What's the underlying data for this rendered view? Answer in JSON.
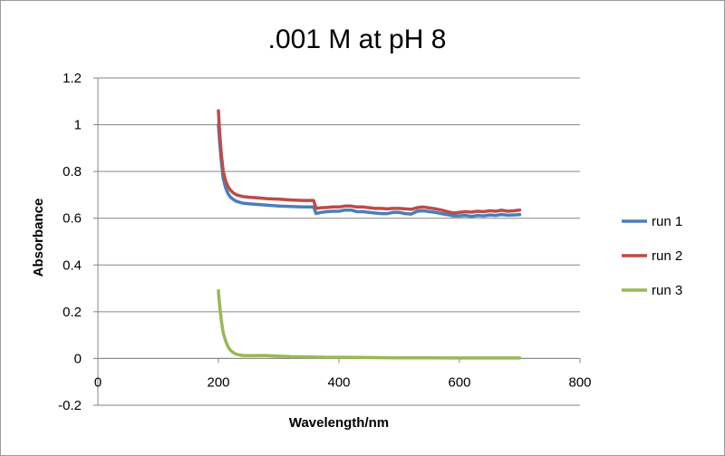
{
  "chart_data": {
    "type": "line",
    "title": ".001 M at pH 8",
    "xlabel": "Wavelength/nm",
    "ylabel": "Absorbance",
    "xlim": [
      0,
      800
    ],
    "ylim": [
      -0.2,
      1.2
    ],
    "xticks": [
      0,
      200,
      400,
      600,
      800
    ],
    "yticks": [
      -0.2,
      0,
      0.2,
      0.4,
      0.6,
      0.8,
      1,
      1.2
    ],
    "xtick_labels": [
      "0",
      "200",
      "400",
      "600",
      "800"
    ],
    "ytick_labels": [
      "-0.2",
      "0",
      "0.2",
      "0.4",
      "0.6",
      "0.8",
      "1",
      "1.2"
    ],
    "grid": "horizontal",
    "legend_position": "right",
    "series": [
      {
        "name": "run 1",
        "color": "#4a7ebb",
        "x": [
          200,
          202,
          205,
          208,
          212,
          216,
          220,
          225,
          230,
          240,
          250,
          260,
          270,
          280,
          300,
          320,
          340,
          358,
          362,
          370,
          380,
          390,
          400,
          410,
          420,
          430,
          440,
          450,
          460,
          470,
          480,
          490,
          500,
          510,
          520,
          530,
          540,
          550,
          560,
          570,
          580,
          590,
          600,
          610,
          620,
          630,
          640,
          650,
          660,
          670,
          680,
          690,
          700
        ],
        "y": [
          1.0,
          0.93,
          0.84,
          0.77,
          0.73,
          0.705,
          0.69,
          0.68,
          0.672,
          0.665,
          0.662,
          0.66,
          0.658,
          0.656,
          0.652,
          0.65,
          0.648,
          0.648,
          0.62,
          0.625,
          0.628,
          0.63,
          0.63,
          0.635,
          0.635,
          0.628,
          0.628,
          0.625,
          0.622,
          0.62,
          0.62,
          0.625,
          0.625,
          0.62,
          0.618,
          0.63,
          0.632,
          0.628,
          0.625,
          0.62,
          0.615,
          0.61,
          0.61,
          0.612,
          0.608,
          0.612,
          0.61,
          0.614,
          0.612,
          0.616,
          0.613,
          0.614,
          0.615
        ]
      },
      {
        "name": "run 2",
        "color": "#be4b48",
        "x": [
          200,
          202,
          205,
          208,
          212,
          216,
          220,
          225,
          230,
          240,
          250,
          260,
          270,
          280,
          300,
          320,
          340,
          358,
          362,
          370,
          380,
          390,
          400,
          410,
          420,
          430,
          440,
          450,
          460,
          470,
          480,
          490,
          500,
          510,
          520,
          530,
          540,
          550,
          560,
          570,
          580,
          590,
          600,
          610,
          620,
          630,
          640,
          650,
          660,
          670,
          680,
          690,
          700
        ],
        "y": [
          1.06,
          0.97,
          0.87,
          0.8,
          0.76,
          0.735,
          0.72,
          0.708,
          0.7,
          0.693,
          0.69,
          0.688,
          0.686,
          0.684,
          0.682,
          0.678,
          0.676,
          0.676,
          0.642,
          0.645,
          0.646,
          0.648,
          0.648,
          0.652,
          0.652,
          0.648,
          0.648,
          0.645,
          0.642,
          0.642,
          0.64,
          0.642,
          0.642,
          0.64,
          0.638,
          0.645,
          0.648,
          0.644,
          0.64,
          0.635,
          0.628,
          0.622,
          0.625,
          0.628,
          0.626,
          0.63,
          0.628,
          0.632,
          0.63,
          0.634,
          0.63,
          0.632,
          0.635
        ]
      },
      {
        "name": "run 3",
        "color": "#98b954",
        "x": [
          200,
          202,
          205,
          208,
          212,
          216,
          220,
          225,
          230,
          240,
          250,
          260,
          270,
          280,
          300,
          320,
          340,
          360,
          380,
          400,
          450,
          500,
          550,
          600,
          650,
          700
        ],
        "y": [
          0.29,
          0.23,
          0.16,
          0.11,
          0.075,
          0.05,
          0.035,
          0.025,
          0.018,
          0.013,
          0.012,
          0.012,
          0.013,
          0.012,
          0.01,
          0.008,
          0.007,
          0.006,
          0.005,
          0.005,
          0.004,
          0.003,
          0.003,
          0.002,
          0.002,
          0.002
        ]
      }
    ]
  }
}
